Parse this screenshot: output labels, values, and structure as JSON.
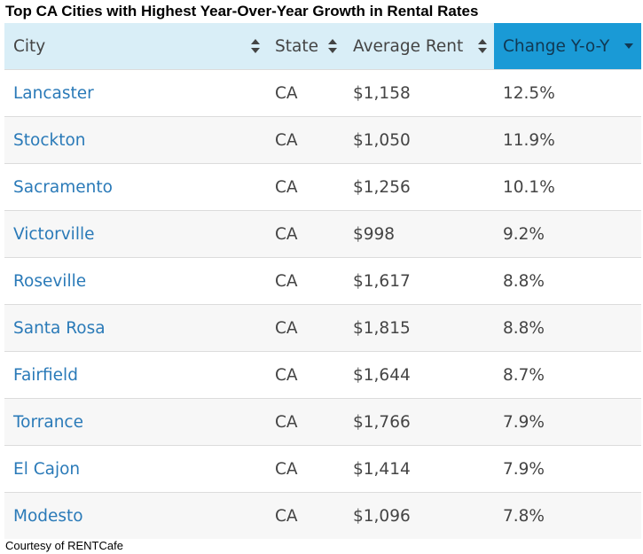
{
  "title": "Top CA Cities with Highest Year-Over-Year Growth in Rental Rates",
  "columns": [
    {
      "label": "City"
    },
    {
      "label": "State"
    },
    {
      "label": "Average Rent"
    },
    {
      "label": "Change Y-o-Y"
    }
  ],
  "sorted_column": "Change Y-o-Y",
  "sort_direction": "descending",
  "rows": [
    {
      "city": "Lancaster",
      "state": "CA",
      "rent": "$1,158",
      "change": "12.5%"
    },
    {
      "city": "Stockton",
      "state": "CA",
      "rent": "$1,050",
      "change": "11.9%"
    },
    {
      "city": "Sacramento",
      "state": "CA",
      "rent": "$1,256",
      "change": "10.1%"
    },
    {
      "city": "Victorville",
      "state": "CA",
      "rent": "$998",
      "change": "9.2%"
    },
    {
      "city": "Roseville",
      "state": "CA",
      "rent": "$1,617",
      "change": "8.8%"
    },
    {
      "city": "Santa Rosa",
      "state": "CA",
      "rent": "$1,815",
      "change": "8.8%"
    },
    {
      "city": "Fairfield",
      "state": "CA",
      "rent": "$1,644",
      "change": "8.7%"
    },
    {
      "city": "Torrance",
      "state": "CA",
      "rent": "$1,766",
      "change": "7.9%"
    },
    {
      "city": "El Cajon",
      "state": "CA",
      "rent": "$1,414",
      "change": "7.9%"
    },
    {
      "city": "Modesto",
      "state": "CA",
      "rent": "$1,096",
      "change": "7.8%"
    }
  ],
  "footer": "Courtesy of RENTCafe",
  "colors": {
    "header_bg": "#d9eef7",
    "active_header_bg": "#1a9ad6",
    "link": "#2a7ab8",
    "text": "#444444"
  }
}
